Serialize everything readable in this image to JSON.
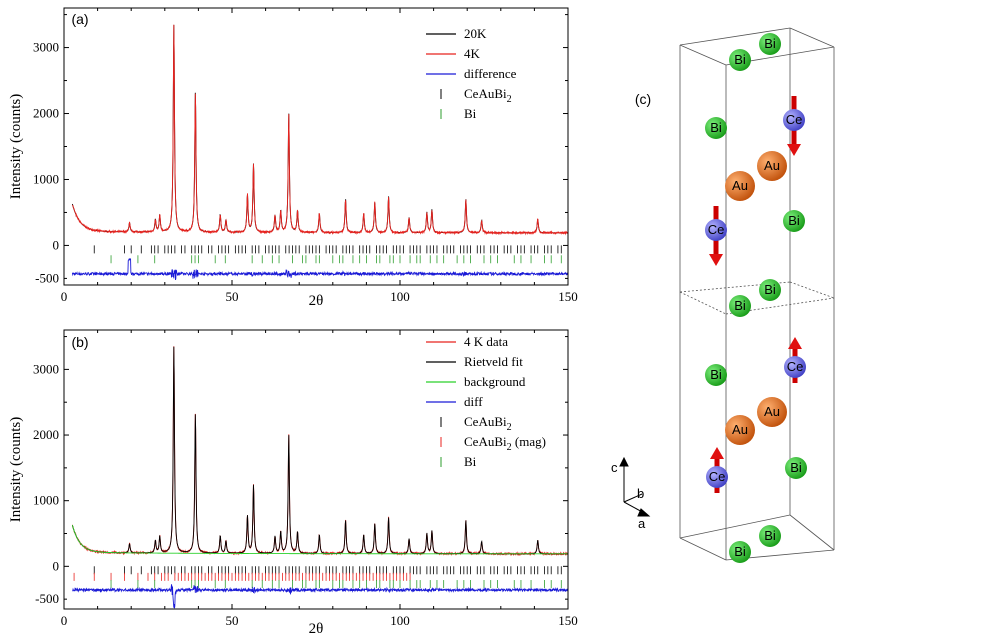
{
  "chart_data": [
    {
      "panel": "(a)",
      "type": "line",
      "xlabel": "2θ",
      "ylabel": "Intensity (counts)",
      "xlim": [
        0,
        150
      ],
      "ylim": [
        -600,
        3600
      ],
      "xticks": [
        0,
        50,
        100,
        150
      ],
      "yticks": [
        0,
        1000,
        2000,
        3000
      ],
      "background_level": 190,
      "difference_offset": -430,
      "peaks": [
        {
          "x": 19.5,
          "y": 330
        },
        {
          "x": 27.2,
          "y": 380
        },
        {
          "x": 28.5,
          "y": 440
        },
        {
          "x": 32.7,
          "y": 3340
        },
        {
          "x": 39.1,
          "y": 2320
        },
        {
          "x": 46.5,
          "y": 460
        },
        {
          "x": 48.2,
          "y": 380
        },
        {
          "x": 54.6,
          "y": 760
        },
        {
          "x": 56.4,
          "y": 1230
        },
        {
          "x": 62.8,
          "y": 450
        },
        {
          "x": 64.5,
          "y": 520
        },
        {
          "x": 66.9,
          "y": 1990
        },
        {
          "x": 69.5,
          "y": 520
        },
        {
          "x": 76.0,
          "y": 480
        },
        {
          "x": 83.8,
          "y": 700
        },
        {
          "x": 89.2,
          "y": 480
        },
        {
          "x": 92.5,
          "y": 650
        },
        {
          "x": 96.6,
          "y": 740
        },
        {
          "x": 102.7,
          "y": 420
        },
        {
          "x": 108.0,
          "y": 500
        },
        {
          "x": 109.5,
          "y": 540
        },
        {
          "x": 119.6,
          "y": 700
        },
        {
          "x": 124.3,
          "y": 380
        },
        {
          "x": 141.0,
          "y": 400
        }
      ],
      "series": [
        {
          "name": "20K",
          "color": "#000000",
          "style": "line"
        },
        {
          "name": "4K",
          "color": "#e8231f",
          "style": "line"
        },
        {
          "name": "difference",
          "color": "#1a1ad6",
          "style": "line"
        }
      ],
      "reflection_ticks": [
        {
          "name": "CeAuBi2",
          "name_base": "CeAuBi",
          "name_sub": "2",
          "color": "#000000",
          "y": 0,
          "x": [
            9,
            18,
            20,
            23,
            26,
            27,
            28,
            30,
            31,
            32,
            33,
            35,
            36,
            38,
            39,
            40,
            41,
            43,
            44,
            46,
            47,
            48,
            49,
            51,
            52,
            53,
            54,
            56,
            57,
            58,
            60,
            61,
            62,
            63,
            64,
            66,
            67,
            68,
            69,
            70,
            72,
            73,
            74,
            75,
            76,
            78,
            79,
            80,
            81,
            83,
            84,
            85,
            86,
            88,
            89,
            90,
            91,
            93,
            94,
            95,
            96,
            98,
            99,
            100,
            101,
            103,
            104,
            105,
            106,
            108,
            109,
            110,
            111,
            113,
            114,
            115,
            116,
            118,
            119,
            120,
            121,
            123,
            124,
            125,
            127,
            128,
            129,
            131,
            132,
            133,
            135,
            136,
            137,
            139,
            140,
            141,
            143,
            144,
            145,
            147,
            148
          ]
        },
        {
          "name": "Bi",
          "color": "#2e9e2e",
          "y": -150,
          "x": [
            14,
            22,
            27,
            38,
            39,
            40,
            45,
            48,
            56,
            59,
            62,
            64,
            68,
            71,
            72,
            75,
            76,
            80,
            82,
            83,
            86,
            88,
            90,
            93,
            94,
            97,
            98,
            100,
            103,
            105,
            106,
            109,
            111,
            113,
            117,
            119,
            121,
            125,
            127,
            129,
            134,
            136,
            139,
            143,
            145,
            148
          ]
        }
      ],
      "legend_position": "top-right"
    },
    {
      "panel": "(b)",
      "type": "line",
      "xlabel": "2θ",
      "ylabel": "Intensity (counts)",
      "xlim": [
        0,
        150
      ],
      "ylim": [
        -650,
        3600
      ],
      "xticks": [
        0,
        50,
        100,
        150
      ],
      "yticks": [
        0,
        1000,
        2000,
        3000
      ],
      "background_level": 190,
      "difference_offset": -360,
      "peaks": [
        {
          "x": 19.5,
          "y": 330
        },
        {
          "x": 27.2,
          "y": 380
        },
        {
          "x": 28.5,
          "y": 440
        },
        {
          "x": 32.7,
          "y": 3340
        },
        {
          "x": 39.1,
          "y": 2320
        },
        {
          "x": 46.5,
          "y": 460
        },
        {
          "x": 48.2,
          "y": 380
        },
        {
          "x": 54.6,
          "y": 760
        },
        {
          "x": 56.4,
          "y": 1230
        },
        {
          "x": 62.8,
          "y": 450
        },
        {
          "x": 64.5,
          "y": 520
        },
        {
          "x": 66.9,
          "y": 1990
        },
        {
          "x": 69.5,
          "y": 520
        },
        {
          "x": 76.0,
          "y": 480
        },
        {
          "x": 83.8,
          "y": 700
        },
        {
          "x": 89.2,
          "y": 480
        },
        {
          "x": 92.5,
          "y": 650
        },
        {
          "x": 96.6,
          "y": 740
        },
        {
          "x": 102.7,
          "y": 420
        },
        {
          "x": 108.0,
          "y": 500
        },
        {
          "x": 109.5,
          "y": 540
        },
        {
          "x": 119.6,
          "y": 700
        },
        {
          "x": 124.3,
          "y": 380
        },
        {
          "x": 141.0,
          "y": 400
        }
      ],
      "series": [
        {
          "name": "4 K data",
          "color": "#e8231f",
          "style": "line"
        },
        {
          "name": "Rietveld fit",
          "color": "#000000",
          "style": "line"
        },
        {
          "name": "background",
          "color": "#2bd12b",
          "style": "line"
        },
        {
          "name": "diff",
          "color": "#1a1ad6",
          "style": "line"
        }
      ],
      "reflection_ticks": [
        {
          "name": "CeAuBi2",
          "name_base": "CeAuBi",
          "name_sub": "2",
          "color": "#000000",
          "y": 0,
          "x": [
            9,
            18,
            20,
            23,
            26,
            27,
            28,
            30,
            31,
            32,
            33,
            35,
            36,
            38,
            39,
            40,
            41,
            43,
            44,
            46,
            47,
            48,
            49,
            51,
            52,
            53,
            54,
            56,
            57,
            58,
            60,
            61,
            62,
            63,
            64,
            66,
            67,
            68,
            69,
            70,
            72,
            73,
            74,
            75,
            76,
            78,
            79,
            80,
            81,
            83,
            84,
            85,
            86,
            88,
            89,
            90,
            91,
            93,
            94,
            95,
            96,
            98,
            99,
            100,
            101,
            103,
            104,
            105,
            106,
            108,
            109,
            110,
            111,
            113,
            114,
            115,
            116,
            118,
            119,
            120,
            121,
            123,
            124,
            125,
            127,
            128,
            129,
            131,
            132,
            133,
            135,
            136,
            137,
            139,
            140,
            141,
            143,
            144,
            145,
            147,
            148
          ]
        },
        {
          "name": "CeAuBi2 (mag)",
          "name_base": "CeAuBi",
          "name_sub": "2",
          "name_suffix": " (mag)",
          "color": "#e8231f",
          "y": -100,
          "x": [
            3,
            9,
            14,
            18,
            22,
            25,
            27,
            29,
            30,
            31,
            33,
            34,
            35,
            36,
            37,
            38,
            39,
            40,
            41,
            42,
            43,
            44,
            45,
            46,
            47,
            48,
            49,
            50,
            51,
            52,
            53,
            54,
            55,
            56,
            57,
            58,
            59,
            60,
            61,
            62,
            63,
            64,
            65,
            66,
            67,
            68,
            69,
            70,
            71,
            72,
            73,
            74,
            75,
            76,
            77,
            78,
            79,
            80,
            81,
            82,
            83,
            84,
            85,
            86,
            87,
            88,
            89,
            90,
            91,
            92,
            93,
            94,
            95,
            96,
            97,
            98,
            99,
            100,
            101,
            102,
            103
          ]
        },
        {
          "name": "Bi",
          "color": "#2e9e2e",
          "y": -210,
          "x": [
            14,
            22,
            27,
            38,
            39,
            40,
            45,
            48,
            56,
            59,
            62,
            64,
            68,
            71,
            72,
            75,
            76,
            80,
            82,
            83,
            86,
            88,
            90,
            93,
            94,
            97,
            98,
            100,
            103,
            105,
            106,
            109,
            111,
            113,
            117,
            119,
            121,
            125,
            127,
            129,
            134,
            136,
            139,
            143,
            145,
            148
          ]
        }
      ],
      "legend_position": "top-right"
    }
  ],
  "panel_c": {
    "label": "(c)",
    "atoms": [
      {
        "element": "Bi",
        "color": "#1fa51f"
      },
      {
        "element": "Bi",
        "color": "#1fa51f"
      },
      {
        "element": "Bi",
        "color": "#1fa51f"
      },
      {
        "element": "Ce",
        "color": "#5b5bd6",
        "moment": "down"
      },
      {
        "element": "Au",
        "color": "#e0650f"
      },
      {
        "element": "Au",
        "color": "#e0650f"
      },
      {
        "element": "Ce",
        "color": "#5b5bd6",
        "moment": "down"
      },
      {
        "element": "Bi",
        "color": "#1fa51f"
      },
      {
        "element": "Bi",
        "color": "#1fa51f"
      },
      {
        "element": "Bi",
        "color": "#1fa51f"
      },
      {
        "element": "Bi",
        "color": "#1fa51f"
      },
      {
        "element": "Ce",
        "color": "#5b5bd6",
        "moment": "up"
      },
      {
        "element": "Au",
        "color": "#e0650f"
      },
      {
        "element": "Au",
        "color": "#e0650f"
      },
      {
        "element": "Ce",
        "color": "#5b5bd6",
        "moment": "up"
      },
      {
        "element": "Bi",
        "color": "#1fa51f"
      },
      {
        "element": "Bi",
        "color": "#1fa51f"
      },
      {
        "element": "Bi",
        "color": "#1fa51f"
      }
    ],
    "axes": {
      "c": "c",
      "b": "b",
      "a": "a"
    }
  }
}
